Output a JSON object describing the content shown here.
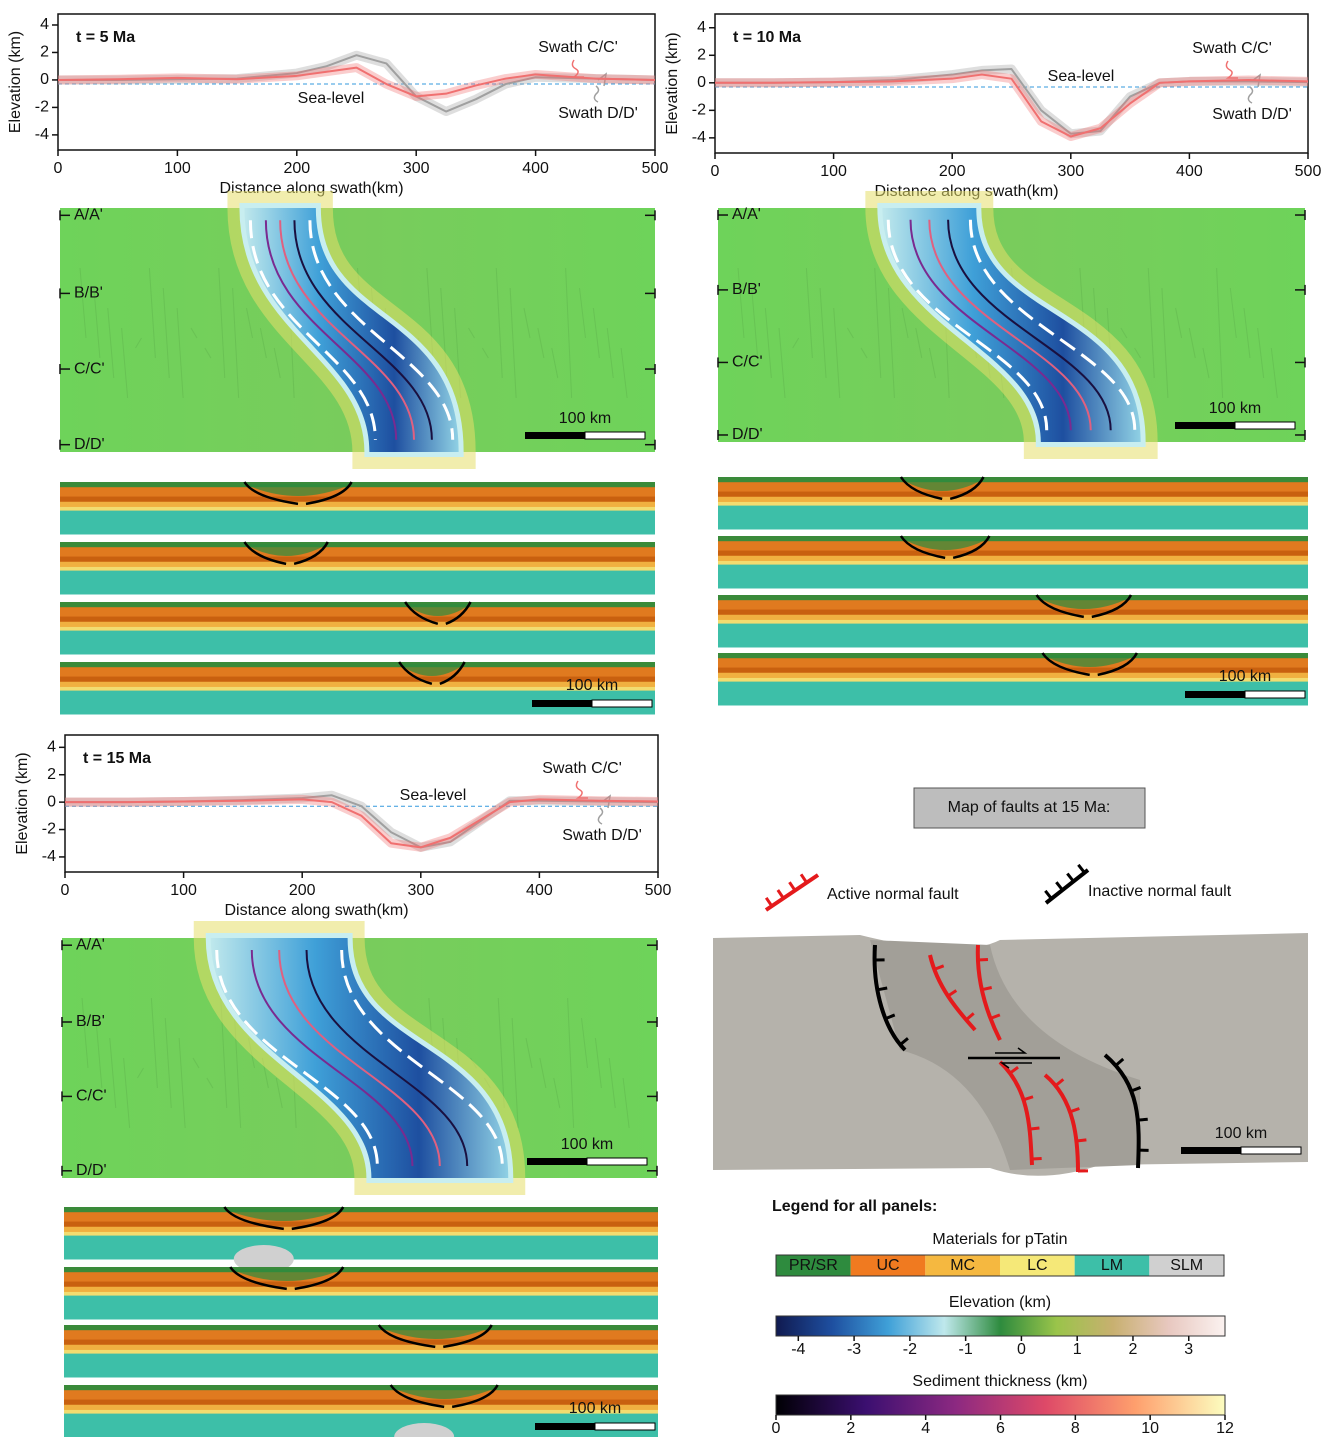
{
  "chart_data": [
    {
      "type": "line",
      "title": "t = 5 Ma",
      "xlabel": "Distance along swath(km)",
      "ylabel": "Elevation (km)",
      "x": [
        0,
        50,
        100,
        150,
        200,
        225,
        250,
        275,
        300,
        325,
        350,
        375,
        400,
        450,
        500
      ],
      "series": [
        {
          "name": "Swath C/C'",
          "color": "#f07070",
          "values": [
            0,
            0.05,
            0.15,
            0.05,
            0.3,
            0.6,
            0.9,
            -0.3,
            -1.2,
            -1.0,
            -0.4,
            0.1,
            0.4,
            0.1,
            0
          ]
        },
        {
          "name": "Swath D/D'",
          "color": "#a0a0a0",
          "values": [
            0,
            0,
            0.05,
            0.1,
            0.5,
            1.0,
            1.8,
            1.2,
            -1.2,
            -2.3,
            -1.4,
            -0.3,
            0.2,
            0.1,
            0
          ]
        }
      ],
      "sea_level": -0.3,
      "sea_level_label": "Sea-level",
      "sea_level_color": "#3399dd",
      "xlim": [
        0,
        500
      ],
      "ylim": [
        -5.1,
        4.8
      ],
      "xticks": [
        0,
        100,
        200,
        300,
        400,
        500
      ],
      "yticks": [
        4,
        2,
        0,
        -2,
        -4
      ]
    },
    {
      "type": "line",
      "title": "t = 10 Ma",
      "xlabel": "Distance along swath(km)",
      "ylabel": "Elevation (km)",
      "x": [
        0,
        50,
        100,
        150,
        200,
        225,
        250,
        275,
        300,
        325,
        350,
        375,
        400,
        450,
        500
      ],
      "series": [
        {
          "name": "Swath C/C'",
          "color": "#f07070",
          "values": [
            0,
            0,
            0.05,
            0.1,
            0.3,
            0.6,
            0.3,
            -2.8,
            -3.9,
            -3.3,
            -1.5,
            0,
            0.1,
            0.2,
            0.1
          ]
        },
        {
          "name": "Swath D/D'",
          "color": "#a0a0a0",
          "values": [
            0,
            0,
            0.05,
            0.2,
            0.6,
            0.9,
            1.0,
            -2.0,
            -3.7,
            -3.5,
            -1.0,
            0,
            0.1,
            0.1,
            0.05
          ]
        }
      ],
      "sea_level": -0.3,
      "sea_level_label": "Sea-level",
      "sea_level_color": "#3399dd",
      "xlim": [
        0,
        500
      ],
      "ylim": [
        -5.1,
        5.0
      ],
      "xticks": [
        0,
        100,
        200,
        300,
        400,
        500
      ],
      "yticks": [
        4,
        2,
        0,
        -2,
        -4
      ]
    },
    {
      "type": "line",
      "title": "t = 15 Ma",
      "xlabel": "Distance along swath(km)",
      "ylabel": "Elevation (km)",
      "x": [
        0,
        50,
        100,
        150,
        200,
        225,
        250,
        275,
        300,
        325,
        350,
        375,
        400,
        450,
        500
      ],
      "series": [
        {
          "name": "Swath C/C'",
          "color": "#f07070",
          "values": [
            0,
            0,
            0.05,
            0.1,
            0.2,
            0,
            -1.0,
            -3.0,
            -3.3,
            -2.6,
            -1.3,
            0,
            0.2,
            0.1,
            0.05
          ]
        },
        {
          "name": "Swath D/D'",
          "color": "#a0a0a0",
          "values": [
            0,
            0,
            0.05,
            0.15,
            0.3,
            0.5,
            -0.3,
            -2.2,
            -3.3,
            -2.9,
            -1.4,
            0.1,
            0.1,
            0.05,
            0
          ]
        }
      ],
      "sea_level": -0.3,
      "sea_level_label": "Sea-level",
      "sea_level_color": "#3399dd",
      "xlim": [
        0,
        500
      ],
      "ylim": [
        -5.1,
        4.9
      ],
      "xticks": [
        0,
        100,
        200,
        300,
        400,
        500
      ],
      "yticks": [
        4,
        2,
        0,
        -2,
        -4
      ]
    }
  ],
  "maps": [
    {
      "profiles": [
        "A/A'",
        "B/B'",
        "C/C'",
        "D/D'"
      ],
      "scale_label": "100 km"
    },
    {
      "profiles": [
        "A/A'",
        "B/B'",
        "C/C'",
        "D/D'"
      ],
      "scale_label": "100 km"
    },
    {
      "profiles": [
        "A/A'",
        "B/B'",
        "C/C'",
        "D/D'"
      ],
      "scale_label": "100 km"
    }
  ],
  "cross_sections": [
    {
      "scale_label": "100 km"
    },
    {
      "scale_label": "100 km"
    },
    {
      "scale_label": "100 km"
    }
  ],
  "fault_map": {
    "title": "Map of faults at 15 Ma:",
    "active_label": "Active normal fault",
    "inactive_label": "Inactive normal fault",
    "scale_label": "100 km"
  },
  "legend": {
    "title": "Legend for all panels:",
    "materials": {
      "label": "Materials for pTatin",
      "names": [
        "PR/SR",
        "UC",
        "MC",
        "LC",
        "LM",
        "SLM"
      ],
      "colors": [
        "#2e8b3e",
        "#f07a20",
        "#f5b840",
        "#f5e878",
        "#3dbfa8",
        "#d0d0d0"
      ]
    },
    "elevation": {
      "label": "Elevation (km)",
      "lim": [
        -4.4,
        3.65
      ],
      "ticks": [
        -4,
        -3,
        -2,
        -1,
        0,
        1,
        2,
        3
      ],
      "colors": [
        "#101a50",
        "#1e4fa0",
        "#3fa0d8",
        "#bfe8ec",
        "#2e8b3e",
        "#9ac44a",
        "#c8b070",
        "#e8c8c0",
        "#fbf2f0"
      ]
    },
    "sediment": {
      "label": "Sediment thickness (km)",
      "lim": [
        0,
        12
      ],
      "ticks": [
        0,
        2,
        4,
        6,
        8,
        10,
        12
      ],
      "colors": [
        "#000004",
        "#3b0f70",
        "#8c2981",
        "#de4968",
        "#fe9f6d",
        "#fcfdbf"
      ]
    }
  }
}
